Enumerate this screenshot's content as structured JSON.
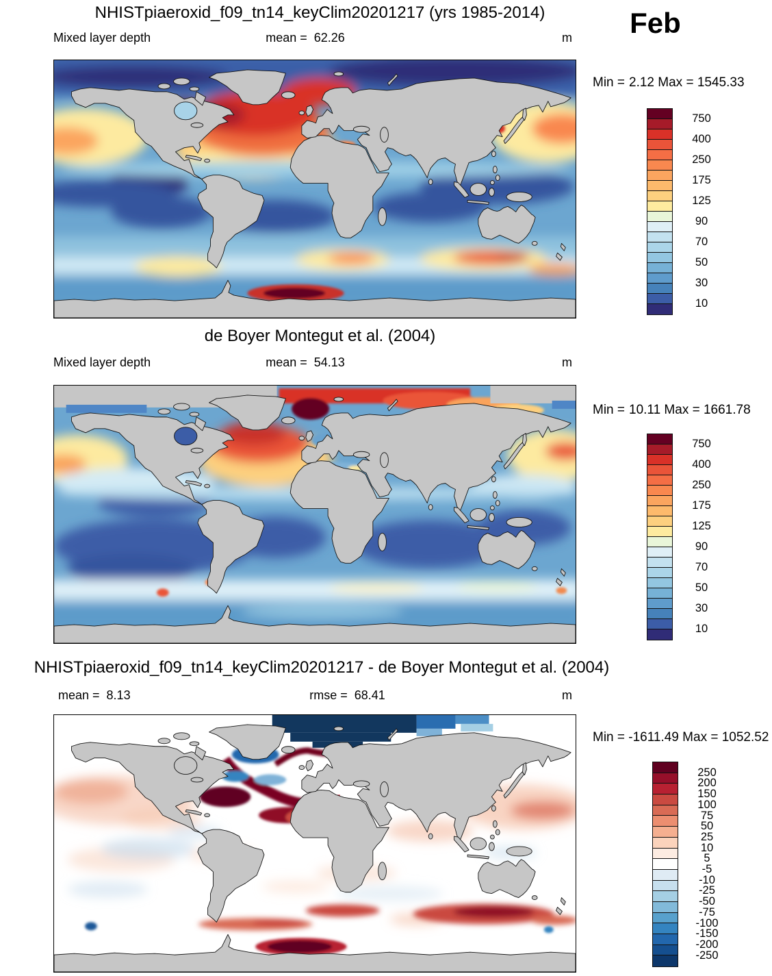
{
  "figure": {
    "month_label": "Feb"
  },
  "panels": [
    {
      "title": "NHISTpiaeroxid_f09_tn14_keyClim20201217 (yrs 1985-2014)",
      "field_label": "Mixed layer depth",
      "mean_label": "mean =",
      "mean_value": "62.26",
      "unit": "m",
      "min_label": "Min =",
      "min_value": "2.12",
      "max_label": "Max =",
      "max_value": "1545.33"
    },
    {
      "title": "de Boyer Montegut et al. (2004)",
      "field_label": "Mixed layer depth",
      "mean_label": "mean =",
      "mean_value": "54.13",
      "unit": "m",
      "min_label": "Min =",
      "min_value": "10.11",
      "max_label": "Max =",
      "max_value": "1661.78"
    },
    {
      "title": "NHISTpiaeroxid_f09_tn14_keyClim20201217 - de Boyer Montegut et al. (2004)",
      "mean_label": "mean =",
      "mean_value": "8.13",
      "rmse_label": "rmse =",
      "rmse_value": "68.41",
      "unit": "m",
      "min_label": "Min =",
      "min_value": "-1611.49",
      "max_label": "Max =",
      "max_value": "1052.52"
    }
  ],
  "colorbars": {
    "mld": {
      "colors": [
        "#640022",
        "#a61b29",
        "#d93128",
        "#ea5439",
        "#f56e45",
        "#f9884f",
        "#fba55f",
        "#fdba6c",
        "#fdd07f",
        "#feeb9f",
        "#e9f6d9",
        "#dfeff6",
        "#c3e1ef",
        "#abd5e9",
        "#93c6e1",
        "#76b1d6",
        "#5f9ccc",
        "#4682ba",
        "#3c5da7",
        "#302c77"
      ],
      "tick_labels": [
        "750",
        "400",
        "250",
        "175",
        "125",
        "90",
        "70",
        "50",
        "30",
        "10"
      ]
    },
    "diff": {
      "colors": [
        "#600020",
        "#960f2a",
        "#b82132",
        "#ca4a41",
        "#d96b55",
        "#ec8e70",
        "#f5af90",
        "#fbd3bc",
        "#fdece2",
        "#ffffff",
        "#dfebf4",
        "#c7dfee",
        "#a5cfe4",
        "#82bada",
        "#58a1cd",
        "#3484c0",
        "#2267ad",
        "#154f8f",
        "#0d376b"
      ],
      "tick_labels": [
        "250",
        "200",
        "150",
        "100",
        "75",
        "50",
        "25",
        "10",
        "5",
        "-5",
        "-10",
        "-25",
        "-50",
        "-75",
        "-100",
        "-150",
        "-200",
        "-250"
      ]
    }
  },
  "chart_data": [
    {
      "type": "heatmap",
      "subtype": "global-map",
      "title": "NHISTpiaeroxid_f09_tn14_keyClim20201217 (yrs 1985-2014)",
      "variable": "Mixed layer depth",
      "units": "m",
      "month": "Feb",
      "stats": {
        "mean": 62.26,
        "min": 2.12,
        "max": 1545.33
      },
      "colorbar_levels": [
        10,
        30,
        50,
        70,
        90,
        125,
        175,
        250,
        400,
        750
      ],
      "palette_cells": 20,
      "legend_position": "right",
      "notes": "Deepest mixed layers (>400 m, dark red) in subpolar North Atlantic and near Antarctica in the Atlantic sector; 100-250 m (yellow/orange) in subtropical North Pacific and Southern Ocean ~45S; shallow (<50 m, blue/navy) in tropics and southern subtropics; land masked gray"
    },
    {
      "type": "heatmap",
      "subtype": "global-map",
      "title": "de Boyer Montegut et al. (2004)",
      "variable": "Mixed layer depth",
      "units": "m",
      "month": "Feb",
      "stats": {
        "mean": 54.13,
        "min": 10.11,
        "max": 1661.78
      },
      "colorbar_levels": [
        10,
        30,
        50,
        70,
        90,
        125,
        175,
        250,
        400,
        750
      ],
      "palette_cells": 20,
      "legend_position": "right",
      "notes": "Observations: deep mixed layer (red/orange) in Nordic Seas / Arctic margin band and North Atlantic; yellow subtropical North Pacific; mostly 10-70 m (blue) elsewhere; high-Arctic and Antarctica masked gray"
    },
    {
      "type": "heatmap",
      "subtype": "global-map-difference",
      "title": "NHISTpiaeroxid_f09_tn14_keyClim20201217 - de Boyer Montegut et al. (2004)",
      "variable": "Mixed layer depth difference (model - obs)",
      "units": "m",
      "month": "Feb",
      "stats": {
        "mean": 8.13,
        "rmse": 68.41,
        "min": -1611.49,
        "max": 1052.52
      },
      "colorbar_levels": [
        -250,
        -200,
        -150,
        -100,
        -75,
        -50,
        -25,
        -10,
        -5,
        5,
        10,
        25,
        50,
        75,
        100,
        150,
        200,
        250
      ],
      "palette_cells": 19,
      "legend_position": "right",
      "notes": "Mostly near-zero (white) with positive bias (>150 m, dark red) in subpolar North Atlantic, Southern Ocean ~45-55S and near Antarctica; strong negative bias (< -200 m, dark navy) in central Arctic"
    }
  ]
}
